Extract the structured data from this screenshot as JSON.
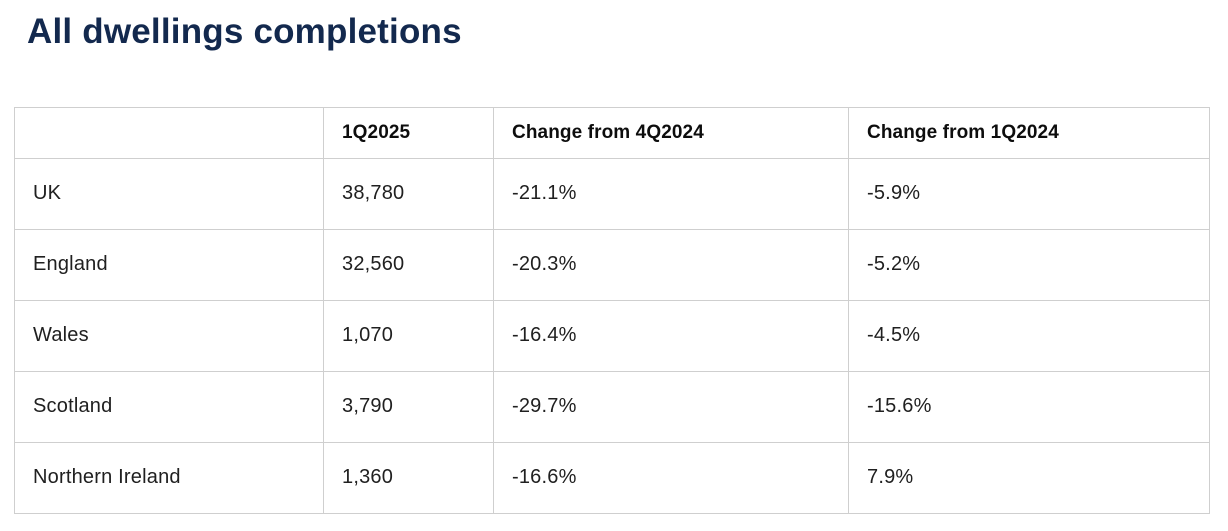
{
  "page": {
    "title": "All dwellings completions"
  },
  "table": {
    "columns": [
      "",
      "1Q2025",
      "Change from 4Q2024",
      "Change from 1Q2024"
    ],
    "rows": [
      [
        "UK",
        "38,780",
        "-21.1%",
        "-5.9%"
      ],
      [
        "England",
        "32,560",
        "-20.3%",
        "-5.2%"
      ],
      [
        "Wales",
        "1,070",
        "-16.4%",
        "-4.5%"
      ],
      [
        "Scotland",
        "3,790",
        "-29.7%",
        "-15.6%"
      ],
      [
        "Northern Ireland",
        "1,360",
        "-16.6%",
        "7.9%"
      ]
    ]
  },
  "chart_data": {
    "type": "table",
    "title": "All dwellings completions",
    "columns": [
      "",
      "1Q2025",
      "Change from 4Q2024",
      "Change from 1Q2024"
    ],
    "rows": [
      {
        "region": "UK",
        "q1_2025": 38780,
        "change_from_4q2024_pct": -21.1,
        "change_from_1q2024_pct": -5.9
      },
      {
        "region": "England",
        "q1_2025": 32560,
        "change_from_4q2024_pct": -20.3,
        "change_from_1q2024_pct": -5.2
      },
      {
        "region": "Wales",
        "q1_2025": 1070,
        "change_from_4q2024_pct": -16.4,
        "change_from_1q2024_pct": -4.5
      },
      {
        "region": "Scotland",
        "q1_2025": 3790,
        "change_from_4q2024_pct": -29.7,
        "change_from_1q2024_pct": -15.6
      },
      {
        "region": "Northern Ireland",
        "q1_2025": 1360,
        "change_from_4q2024_pct": -16.6,
        "change_from_1q2024_pct": 7.9
      }
    ]
  },
  "colors": {
    "title": "#13294e",
    "header_text": "#0d0d0d",
    "body_text": "#202020",
    "border": "#cfcfcf",
    "background": "#ffffff"
  }
}
